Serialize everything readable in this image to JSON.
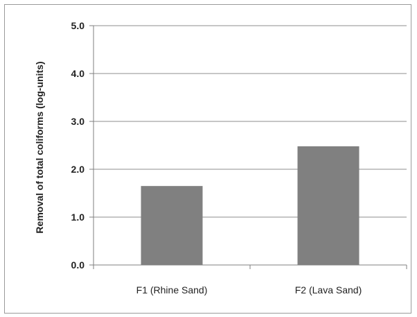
{
  "chart_data": {
    "type": "bar",
    "categories": [
      "F1 (Rhine Sand)",
      "F2 (Lava Sand)"
    ],
    "values": [
      1.65,
      2.48
    ],
    "ylabel": "Removal of total coliforms (log-units)",
    "ylim": [
      0,
      5
    ],
    "yticks": [
      "0.0",
      "1.0",
      "2.0",
      "3.0",
      "4.0",
      "5.0"
    ],
    "grid": true,
    "bar_color": "#808080"
  }
}
